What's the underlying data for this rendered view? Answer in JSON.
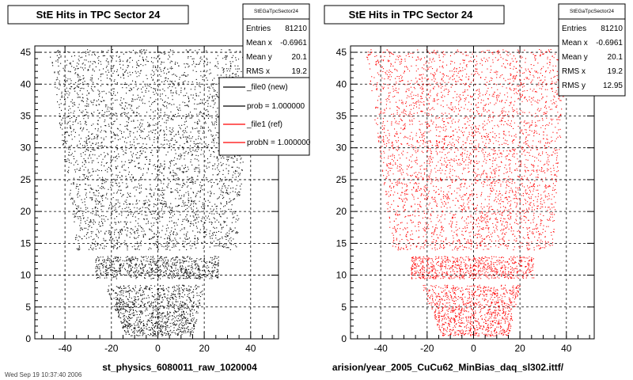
{
  "canvas": {
    "footer_text": "Wed Sep 19 10:37:40 2006"
  },
  "chart_data": [
    {
      "type": "scatter",
      "title": "StE Hits in TPC Sector 24",
      "xlabel": "st_physics_6080011_raw_1020004",
      "ylabel": "",
      "xlim": [
        -53,
        52
      ],
      "ylim": [
        0,
        46
      ],
      "xticks": [
        -40,
        -20,
        0,
        20,
        40
      ],
      "yticks": [
        0,
        5,
        10,
        15,
        20,
        25,
        30,
        35,
        40,
        45
      ],
      "grid": true,
      "point_color": "#000000",
      "stats": {
        "name": "StEGaTpcSector24",
        "rows": [
          {
            "label": "Entries",
            "value": "81210"
          },
          {
            "label": "Mean x",
            "value": "-0.6961"
          },
          {
            "label": "Mean y",
            "value": "20.1"
          },
          {
            "label": "RMS x",
            "value": "19.2"
          }
        ]
      },
      "legend": {
        "placement": "top-right",
        "entries": [
          {
            "label": "_file0 (new)",
            "color": "#000000"
          },
          {
            "label": "prob = 1.000000",
            "color": "#000000"
          },
          {
            "label": "_file1 (ref)",
            "color": "#ff0000"
          },
          {
            "label": "probN = 1.000000",
            "color": "#ff0000"
          }
        ]
      },
      "distribution": {
        "entries": 81210,
        "bands": [
          {
            "y_range": [
              14,
              45.5
            ],
            "x_min_at_low_y": -35,
            "x_max_at_low_y": 34,
            "x_min_at_high_y": -47,
            "x_max_at_high_y": 40
          },
          {
            "y_range": [
              9.5,
              13
            ],
            "x_min_at_low_y": -27,
            "x_max_at_low_y": 26,
            "x_min_at_high_y": -27,
            "x_max_at_high_y": 26
          },
          {
            "y_range": [
              0.5,
              8.5
            ],
            "x_min_at_low_y": -14,
            "x_max_at_low_y": 15,
            "x_min_at_high_y": -23,
            "x_max_at_high_y": 20
          }
        ]
      }
    },
    {
      "type": "scatter",
      "title": "StE Hits in TPC Sector 24",
      "xlabel": "arision/year_2005_CuCu62_MinBias_daq_sl302.ittf/",
      "ylabel": "",
      "xlim": [
        -53,
        52
      ],
      "ylim": [
        0,
        46
      ],
      "xticks": [
        -40,
        -20,
        0,
        20,
        40
      ],
      "yticks": [
        0,
        5,
        10,
        15,
        20,
        25,
        30,
        35,
        40,
        45
      ],
      "grid": true,
      "point_color": "#ff0000",
      "stats": {
        "name": "StEGaTpcSector24",
        "rows": [
          {
            "label": "Entries",
            "value": "81210"
          },
          {
            "label": "Mean x",
            "value": "-0.6961"
          },
          {
            "label": "Mean y",
            "value": "20.1"
          },
          {
            "label": "RMS x",
            "value": "19.2"
          },
          {
            "label": "RMS y",
            "value": "12.95"
          }
        ]
      },
      "distribution": {
        "entries": 81210,
        "bands": [
          {
            "y_range": [
              14,
              45.5
            ],
            "x_min_at_low_y": -35,
            "x_max_at_low_y": 34,
            "x_min_at_high_y": -47,
            "x_max_at_high_y": 40
          },
          {
            "y_range": [
              9.5,
              13
            ],
            "x_min_at_low_y": -27,
            "x_max_at_low_y": 26,
            "x_min_at_high_y": -27,
            "x_max_at_high_y": 26
          },
          {
            "y_range": [
              0.5,
              8.5
            ],
            "x_min_at_low_y": -14,
            "x_max_at_low_y": 15,
            "x_min_at_high_y": -23,
            "x_max_at_high_y": 20
          }
        ]
      }
    }
  ]
}
